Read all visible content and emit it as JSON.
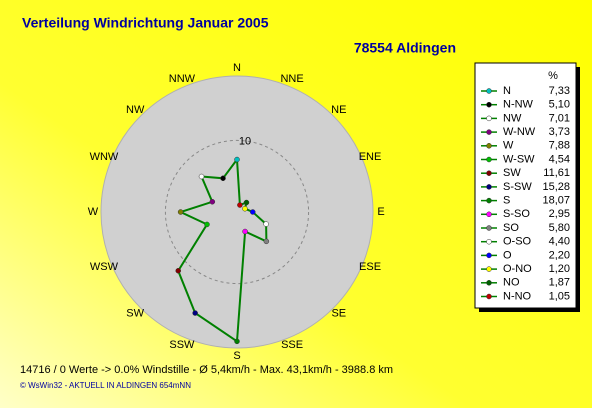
{
  "chart_data": {
    "type": "radar",
    "title": "Verteilung Windrichtung   Januar 2005",
    "subtitle": "78554 Aldingen",
    "direction_labels": [
      "N",
      "NNE",
      "NE",
      "ENE",
      "E",
      "ESE",
      "SE",
      "SSE",
      "S",
      "SSW",
      "SW",
      "WSW",
      "W",
      "WNW",
      "NW",
      "NNW"
    ],
    "categories": [
      "N",
      "N-NW",
      "NW",
      "W-NW",
      "W",
      "W-SW",
      "SW",
      "S-SW",
      "S",
      "S-SO",
      "SO",
      "O-SO",
      "O",
      "O-NO",
      "NO",
      "N-NO"
    ],
    "values": [
      7.33,
      5.1,
      7.01,
      3.73,
      7.88,
      4.54,
      11.61,
      15.28,
      18.07,
      2.95,
      5.8,
      4.4,
      2.2,
      1.2,
      1.87,
      1.05
    ],
    "value_labels": [
      "7,33",
      "5,10",
      "7,01",
      "3,73",
      "7,88",
      "4,54",
      "11,61",
      "15,28",
      "18,07",
      "2,95",
      "5,80",
      "4,40",
      "2,20",
      "1,20",
      "1,87",
      "1,05"
    ],
    "marker_colors": [
      "#00c0c0",
      "#000000",
      "#ffffff",
      "#800080",
      "#808000",
      "#00c000",
      "#800000",
      "#000080",
      "#008000",
      "#ff00ff",
      "#808080",
      "#ffffff",
      "#0000ff",
      "#ffff00",
      "#006000",
      "#c00000"
    ],
    "line_color": "#008000",
    "legend_header": "%",
    "rlim": [
      0,
      19
    ],
    "rticks": [
      10
    ],
    "footer": "14716 / 0 Werte  -> 0.0% Windstille   -   Ø 5,4km/h   -  Max. 43,1km/h   -   3988.8 km",
    "copyright": "© WsWin32  -  AKTUELL IN ALDINGEN 654mNN"
  }
}
